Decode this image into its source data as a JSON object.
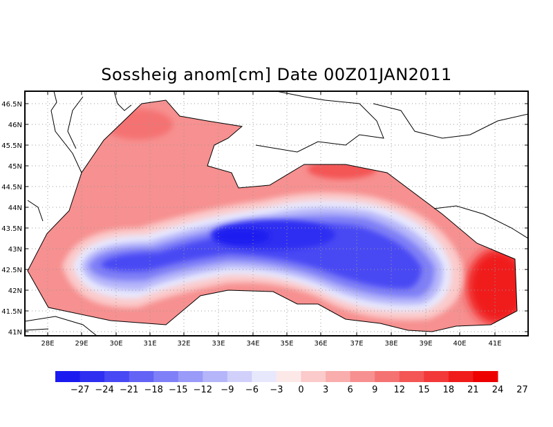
{
  "title": "Sossheig anom[cm] Date 00Z01JAN2011",
  "axes": {
    "x_ticks": [
      "28E",
      "29E",
      "30E",
      "31E",
      "32E",
      "33E",
      "34E",
      "35E",
      "36E",
      "37E",
      "38E",
      "39E",
      "40E",
      "41E"
    ],
    "y_ticks": [
      "46.5N",
      "46N",
      "45.5N",
      "45N",
      "44.5N",
      "44N",
      "43.5N",
      "43N",
      "42.5N",
      "42N",
      "41.5N",
      "41N"
    ]
  },
  "colorbar": {
    "colors": [
      "#1a1af0",
      "#2f2ff2",
      "#4848f4",
      "#6363f5",
      "#7f7ff7",
      "#9a9af8",
      "#b5b5fa",
      "#d0d0fb",
      "#e8e8fd",
      "#fde8e8",
      "#fbcaca",
      "#f9adad",
      "#f79090",
      "#f57272",
      "#f45555",
      "#f23838",
      "#f01b1b",
      "#ee0000"
    ],
    "labels": [
      "-27",
      "-24",
      "-21",
      "-18",
      "-15",
      "-12",
      "-9",
      "-6",
      "-3",
      "0",
      "3",
      "6",
      "9",
      "12",
      "15",
      "18",
      "21",
      "24",
      "27"
    ]
  }
}
